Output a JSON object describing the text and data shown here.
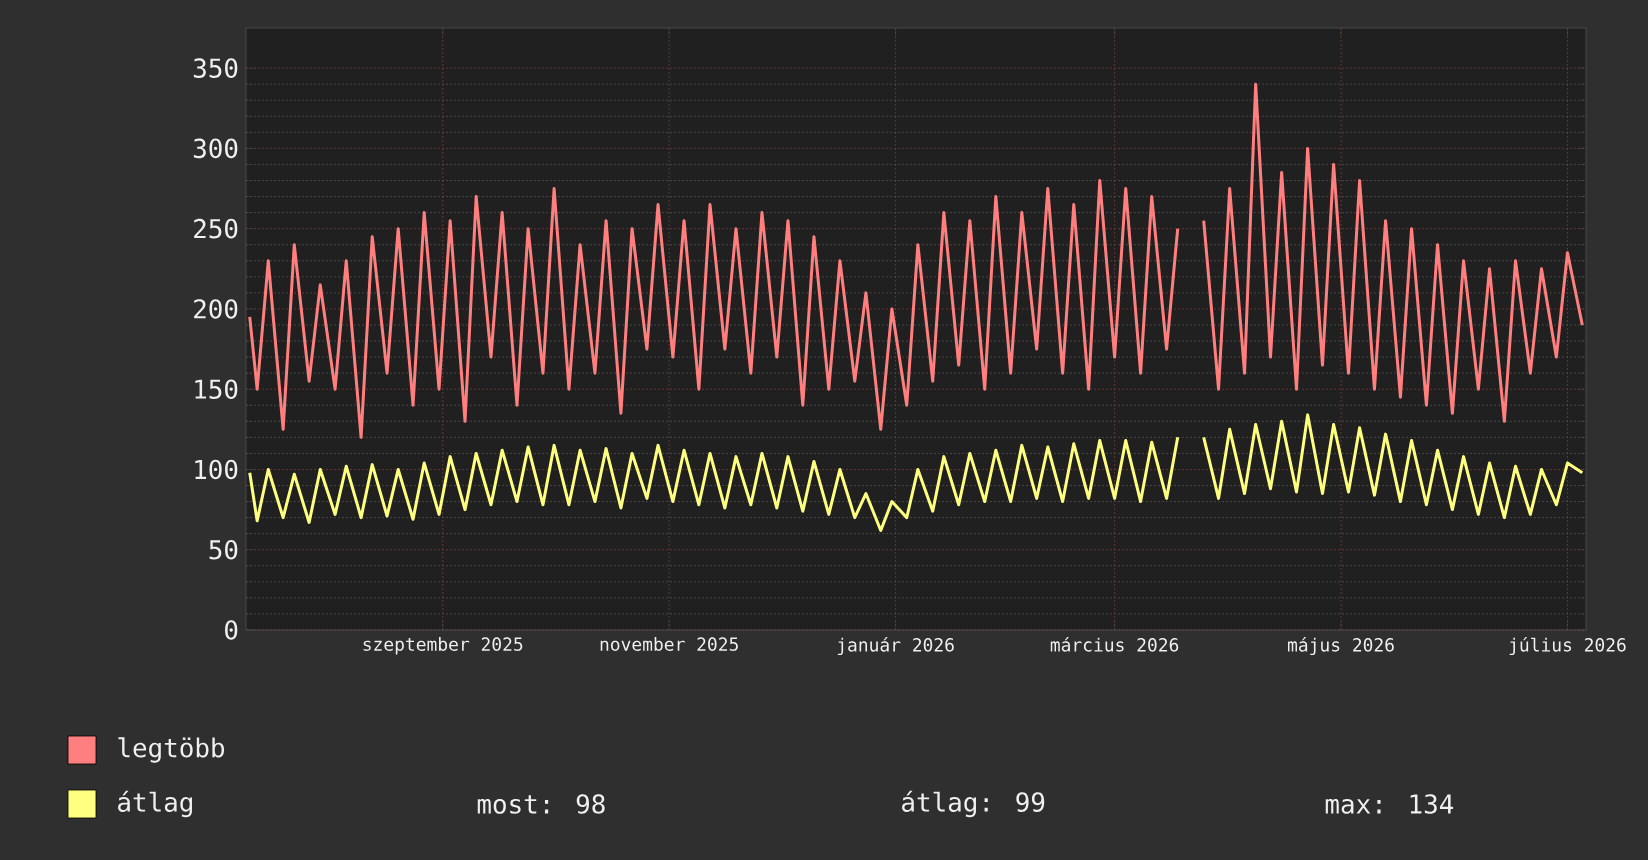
{
  "chart_data": {
    "type": "line",
    "x": [
      "2025-07-11",
      "2025-07-13",
      "2025-07-16",
      "2025-07-20",
      "2025-07-23",
      "2025-07-27",
      "2025-07-30",
      "2025-08-03",
      "2025-08-06",
      "2025-08-10",
      "2025-08-13",
      "2025-08-17",
      "2025-08-20",
      "2025-08-24",
      "2025-08-27",
      "2025-08-31",
      "2025-09-03",
      "2025-09-07",
      "2025-09-10",
      "2025-09-14",
      "2025-09-17",
      "2025-09-21",
      "2025-09-24",
      "2025-09-28",
      "2025-10-01",
      "2025-10-05",
      "2025-10-08",
      "2025-10-12",
      "2025-10-15",
      "2025-10-19",
      "2025-10-22",
      "2025-10-26",
      "2025-10-29",
      "2025-11-02",
      "2025-11-05",
      "2025-11-09",
      "2025-11-12",
      "2025-11-16",
      "2025-11-19",
      "2025-11-23",
      "2025-11-26",
      "2025-11-30",
      "2025-12-03",
      "2025-12-07",
      "2025-12-10",
      "2025-12-14",
      "2025-12-17",
      "2025-12-21",
      "2025-12-24",
      "2025-12-28",
      "2025-12-31",
      "2026-01-04",
      "2026-01-07",
      "2026-01-11",
      "2026-01-14",
      "2026-01-18",
      "2026-01-21",
      "2026-01-25",
      "2026-01-28",
      "2026-02-01",
      "2026-02-04",
      "2026-02-08",
      "2026-02-11",
      "2026-02-15",
      "2026-02-18",
      "2026-02-22",
      "2026-02-25",
      "2026-03-01",
      "2026-03-04",
      "2026-03-08",
      "2026-03-11",
      "2026-03-15",
      "2026-03-18",
      "2026-03-22",
      "2026-03-25",
      "2026-03-29",
      "2026-04-01",
      "2026-04-05",
      "2026-04-08",
      "2026-04-12",
      "2026-04-15",
      "2026-04-19",
      "2026-04-22",
      "2026-04-26",
      "2026-04-29",
      "2026-05-03",
      "2026-05-06",
      "2026-05-10",
      "2026-05-13",
      "2026-05-17",
      "2026-05-20",
      "2026-05-24",
      "2026-05-27",
      "2026-05-31",
      "2026-06-03",
      "2026-06-07",
      "2026-06-10",
      "2026-06-14",
      "2026-06-17",
      "2026-06-21",
      "2026-06-24",
      "2026-06-28",
      "2026-07-01",
      "2026-07-05"
    ],
    "series": [
      {
        "name": "legtöbb",
        "color": "#ff7f7f",
        "values": [
          195,
          150,
          230,
          125,
          240,
          155,
          215,
          150,
          230,
          120,
          245,
          160,
          250,
          140,
          260,
          150,
          255,
          130,
          270,
          170,
          260,
          140,
          250,
          160,
          275,
          150,
          240,
          160,
          255,
          135,
          250,
          175,
          265,
          170,
          255,
          150,
          265,
          175,
          250,
          160,
          260,
          170,
          255,
          140,
          245,
          150,
          230,
          155,
          210,
          125,
          200,
          140,
          240,
          155,
          260,
          165,
          255,
          150,
          270,
          160,
          260,
          175,
          275,
          160,
          265,
          150,
          280,
          170,
          275,
          160,
          270,
          175,
          250,
          null,
          255,
          150,
          275,
          160,
          340,
          170,
          285,
          150,
          300,
          165,
          290,
          160,
          280,
          150,
          255,
          145,
          250,
          140,
          240,
          135,
          230,
          150,
          225,
          130,
          230,
          160,
          225,
          170,
          235,
          190
        ]
      },
      {
        "name": "átlag",
        "color": "#ffff7f",
        "values": [
          98,
          68,
          100,
          70,
          97,
          67,
          100,
          72,
          102,
          70,
          103,
          71,
          100,
          69,
          104,
          72,
          108,
          75,
          110,
          78,
          112,
          80,
          114,
          78,
          115,
          78,
          112,
          80,
          113,
          76,
          110,
          82,
          115,
          80,
          112,
          78,
          110,
          76,
          108,
          78,
          110,
          76,
          108,
          74,
          105,
          72,
          100,
          70,
          85,
          62,
          80,
          70,
          100,
          74,
          108,
          78,
          110,
          80,
          112,
          80,
          115,
          82,
          114,
          80,
          116,
          82,
          118,
          82,
          118,
          80,
          117,
          82,
          120,
          null,
          120,
          82,
          125,
          85,
          128,
          88,
          130,
          86,
          134,
          85,
          128,
          86,
          126,
          84,
          122,
          80,
          118,
          78,
          112,
          75,
          108,
          72,
          104,
          70,
          102,
          72,
          100,
          78,
          104,
          98
        ]
      }
    ],
    "xlim": [
      "2025-07-10",
      "2026-07-06"
    ],
    "xticks": [
      {
        "value": "2025-09-01",
        "label": "szeptember 2025"
      },
      {
        "value": "2025-11-01",
        "label": "november 2025"
      },
      {
        "value": "2026-01-01",
        "label": "január 2026"
      },
      {
        "value": "2026-03-01",
        "label": "március 2026"
      },
      {
        "value": "2026-05-01",
        "label": "május 2026"
      },
      {
        "value": "2026-07-01",
        "label": "július 2026"
      }
    ],
    "ylim": [
      0,
      375
    ],
    "yticks": [
      0,
      50,
      100,
      150,
      200,
      250,
      300,
      350
    ],
    "grid": true,
    "legend": "bottom left",
    "annotations": [
      "most: 98",
      "átlag: 99",
      "max: 134"
    ]
  }
}
